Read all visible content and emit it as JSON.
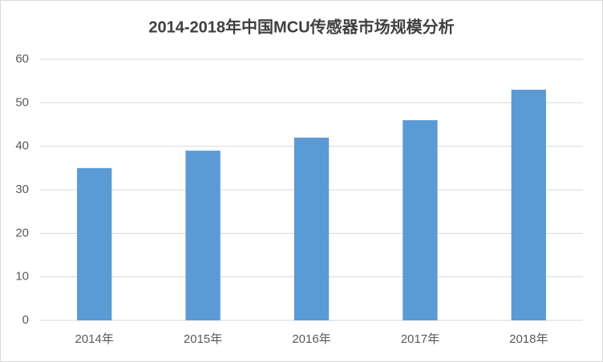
{
  "chart_data": {
    "type": "bar",
    "title": "2014-2018年中国MCU传感器市场规模分析",
    "categories": [
      "2014年",
      "2015年",
      "2016年",
      "2017年",
      "2018年"
    ],
    "values": [
      35,
      39,
      42,
      46,
      53
    ],
    "color": "#5b9bd5",
    "ylim": [
      0,
      60
    ],
    "yticks": [
      0,
      10,
      20,
      30,
      40,
      50,
      60
    ],
    "grid": true
  }
}
